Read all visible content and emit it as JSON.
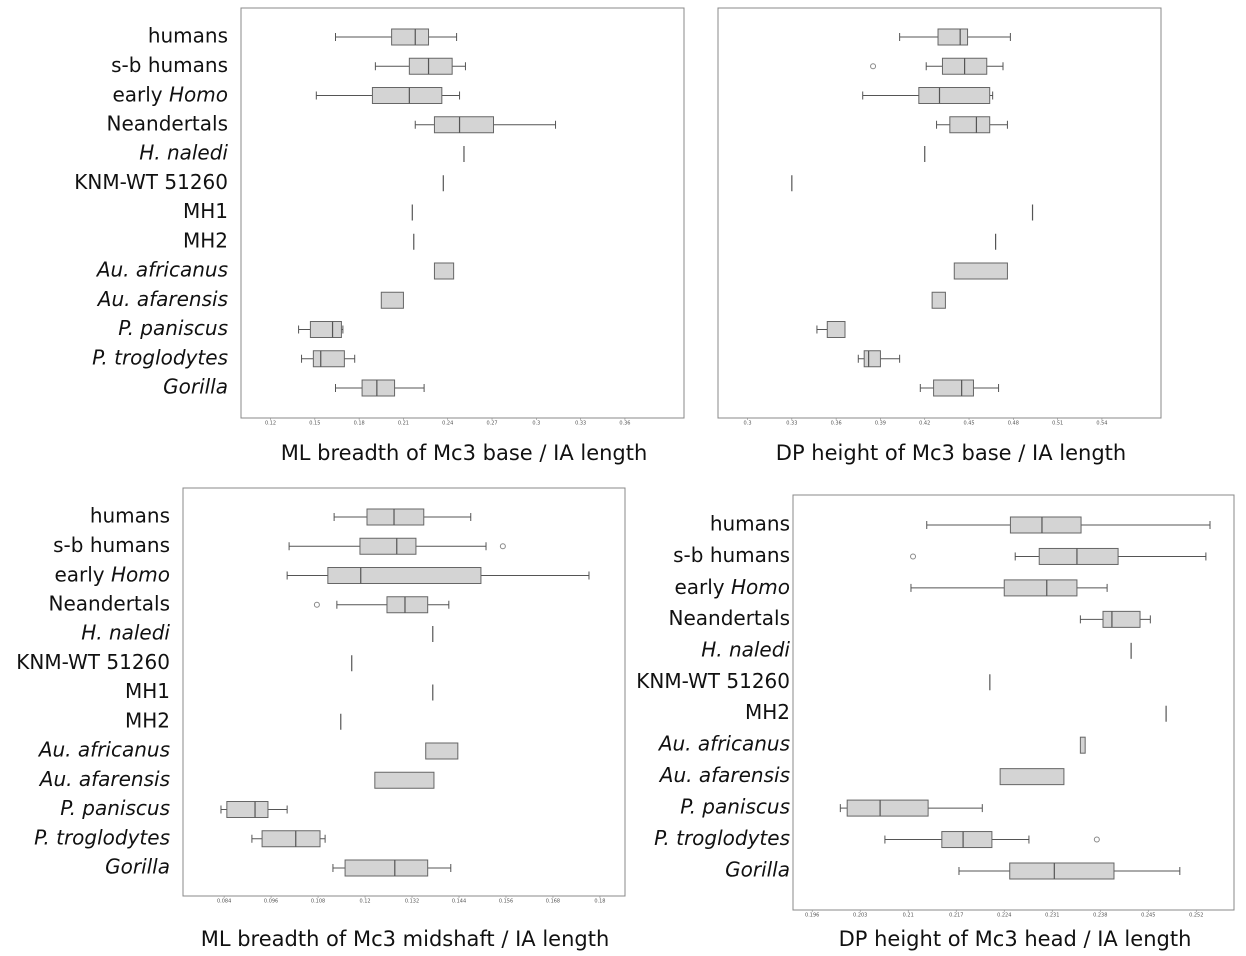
{
  "chart_data": [
    {
      "type": "box",
      "title": "ML breadth of Mc3 base / IA length",
      "categories": [
        "humans",
        "s-b humans",
        "early Homo",
        "Neandertals",
        "H. naledi",
        "KNM-WT 51260",
        "MH1",
        "MH2",
        "Au. africanus",
        "Au. afarensis",
        "P. paniscus",
        "P. troglodytes",
        "Gorilla"
      ],
      "italic": [
        "none",
        "none",
        "last",
        "none",
        "all",
        "none",
        "none",
        "none",
        "all",
        "all",
        "all",
        "all",
        "all"
      ],
      "min": [
        0.164,
        0.191,
        0.151,
        0.218,
        null,
        null,
        null,
        null,
        null,
        null,
        0.139,
        0.141,
        0.164
      ],
      "q1": [
        0.202,
        0.214,
        0.189,
        0.231,
        null,
        null,
        null,
        null,
        0.231,
        0.195,
        0.147,
        0.149,
        0.182
      ],
      "median": [
        0.218,
        0.227,
        0.214,
        0.248,
        0.251,
        0.237,
        0.216,
        0.217,
        null,
        null,
        0.162,
        0.154,
        0.192
      ],
      "q3": [
        0.227,
        0.243,
        0.236,
        0.271,
        null,
        null,
        null,
        null,
        0.244,
        0.21,
        0.168,
        0.17,
        0.204
      ],
      "max": [
        0.246,
        0.252,
        0.248,
        0.313,
        null,
        null,
        null,
        null,
        null,
        null,
        0.169,
        0.177,
        0.224
      ],
      "outliers": [
        [],
        [],
        [],
        [],
        [],
        [],
        [],
        [],
        [],
        [],
        [],
        [],
        []
      ],
      "xlim": [
        0.1,
        0.4
      ],
      "xticks": [
        0.12,
        0.15,
        0.18,
        0.21,
        0.24,
        0.27,
        0.3,
        0.33,
        0.36
      ]
    },
    {
      "type": "box",
      "title": "DP height of Mc3 base / IA length",
      "min": [
        0.403,
        0.421,
        0.378,
        0.428,
        null,
        null,
        null,
        null,
        null,
        null,
        0.347,
        0.375,
        0.417
      ],
      "q1": [
        0.429,
        0.432,
        0.416,
        0.437,
        null,
        null,
        null,
        null,
        0.44,
        0.425,
        0.354,
        0.379,
        0.426
      ],
      "median": [
        0.444,
        0.447,
        0.43,
        0.455,
        0.42,
        0.33,
        0.493,
        0.468,
        null,
        null,
        null,
        0.382,
        0.445
      ],
      "q3": [
        0.449,
        0.462,
        0.464,
        0.464,
        null,
        null,
        null,
        null,
        0.476,
        0.434,
        0.366,
        0.39,
        0.453
      ],
      "max": [
        0.478,
        0.473,
        0.466,
        0.476,
        null,
        null,
        null,
        null,
        null,
        null,
        null,
        0.403,
        0.47
      ],
      "outliers": [
        [],
        [
          0.385
        ],
        [],
        [],
        [],
        [],
        [],
        [],
        [],
        [],
        [],
        [],
        []
      ],
      "xlim": [
        0.28,
        0.58
      ],
      "xticks": [
        0.3,
        0.33,
        0.36,
        0.39,
        0.42,
        0.45,
        0.48,
        0.51,
        0.54
      ]
    },
    {
      "type": "box",
      "title": "ML breadth of Mc3 midshaft / IA length",
      "categories": [
        "humans",
        "s-b humans",
        "early Homo",
        "Neandertals",
        "H. naledi",
        "KNM-WT 51260",
        "MH1",
        "MH2",
        "Au. africanus",
        "Au. afarensis",
        "P. paniscus",
        "P. troglodytes",
        "Gorilla"
      ],
      "italic": [
        "none",
        "none",
        "last",
        "none",
        "all",
        "none",
        "none",
        "none",
        "all",
        "all",
        "all",
        "all",
        "all"
      ],
      "min": [
        0.1121,
        0.1006,
        0.1001,
        0.1128,
        null,
        null,
        null,
        null,
        null,
        null,
        0.0832,
        0.0911,
        0.1118
      ],
      "q1": [
        0.1205,
        0.1187,
        0.1105,
        0.1256,
        null,
        null,
        null,
        null,
        0.1355,
        0.1225,
        0.0847,
        0.0937,
        0.1149
      ],
      "median": [
        0.1274,
        0.1281,
        0.1189,
        0.1302,
        0.1373,
        0.1166,
        0.1373,
        0.1138,
        null,
        null,
        0.0919,
        0.1023,
        0.1276
      ],
      "q3": [
        0.135,
        0.133,
        0.1496,
        0.136,
        null,
        null,
        null,
        null,
        0.1437,
        0.1376,
        0.0952,
        0.1085,
        0.136
      ],
      "max": [
        0.147,
        0.1509,
        0.1772,
        0.1414,
        null,
        null,
        null,
        null,
        null,
        null,
        0.1001,
        0.1098,
        0.1419
      ],
      "outliers": [
        [],
        [
          0.1552
        ],
        [],
        [
          0.1077
        ],
        [],
        [],
        [],
        [],
        [],
        [],
        [],
        [],
        []
      ],
      "xlim": [
        0.0735,
        0.1864
      ],
      "xticks": [
        0.084,
        0.096,
        0.108,
        0.12,
        0.132,
        0.144,
        0.156,
        0.168,
        0.18
      ]
    },
    {
      "type": "box",
      "title": "DP height of Mc3 head / IA length",
      "categories": [
        "humans",
        "s-b humans",
        "early Homo",
        "Neandertals",
        "H. naledi",
        "KNM-WT 51260",
        "MH2",
        "Au. africanus",
        "Au. afarensis",
        "P. paniscus",
        "P. troglodytes",
        "Gorilla"
      ],
      "italic": [
        "none",
        "none",
        "last",
        "none",
        "all",
        "none",
        "none",
        "all",
        "all",
        "all",
        "all",
        "all"
      ],
      "min": [
        0.2127,
        0.2256,
        0.2104,
        0.2351,
        null,
        null,
        null,
        null,
        null,
        0.2001,
        0.2066,
        0.2174
      ],
      "q1": [
        0.2249,
        0.2291,
        0.224,
        0.2384,
        null,
        null,
        null,
        0.2351,
        0.2234,
        0.2011,
        0.2149,
        0.2248
      ],
      "median": [
        0.2295,
        0.2346,
        0.2302,
        0.2397,
        0.2425,
        0.2219,
        0.2476,
        null,
        null,
        0.2059,
        0.218,
        0.2313
      ],
      "q3": [
        0.2352,
        0.2406,
        0.2346,
        0.2438,
        null,
        null,
        null,
        0.2358,
        0.2327,
        0.2129,
        0.2222,
        0.24
      ],
      "max": [
        0.254,
        0.2534,
        0.239,
        0.2453,
        null,
        null,
        null,
        null,
        null,
        0.2208,
        0.2276,
        0.2496
      ],
      "outliers": [
        [],
        [
          0.2107
        ],
        [],
        [],
        [],
        [],
        [],
        [],
        [],
        [],
        [
          0.2375
        ],
        []
      ],
      "xlim": [
        0.1932,
        0.2575
      ],
      "xticks": [
        0.196,
        0.203,
        0.21,
        0.217,
        0.224,
        0.231,
        0.238,
        0.245,
        0.252
      ]
    }
  ]
}
